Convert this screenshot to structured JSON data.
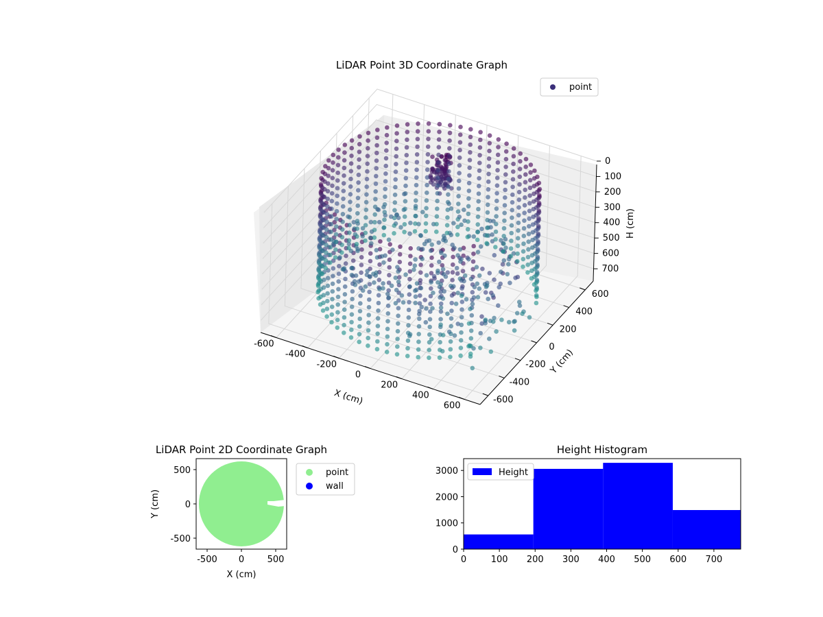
{
  "figure": {
    "background": "#ffffff"
  },
  "chart_data": [
    {
      "type": "scatter",
      "projection": "3d",
      "title": "LiDAR Point 3D Coordinate Graph",
      "xlabel": "X (cm)",
      "ylabel": "Y (cm)",
      "zlabel": "H (cm)",
      "xlim": [
        -700,
        700
      ],
      "ylim": [
        -700,
        700
      ],
      "zlim": [
        0,
        780
      ],
      "z_inverted": true,
      "xticks": [
        -600,
        -400,
        -200,
        0,
        200,
        400,
        600
      ],
      "yticks": [
        -600,
        -400,
        -200,
        0,
        200,
        400,
        600
      ],
      "zticks": [
        0,
        100,
        200,
        300,
        400,
        500,
        600,
        700
      ],
      "grid": true,
      "colormap": [
        "#440154",
        "#3b528b",
        "#21918c"
      ],
      "legend": {
        "position": "upper-right",
        "entries": [
          "point"
        ]
      },
      "series": [
        {
          "name": "point",
          "color": "#3b2f7a",
          "structure": "cylindrical wall of points, radius ~620 cm, heights 0-700 cm; cluster near (-80, 300) at 0-220 cm; floor layer near 400-500 cm; sparse scatter on the +X/-Y side"
        }
      ]
    },
    {
      "type": "scatter",
      "title": "LiDAR Point 2D Coordinate Graph",
      "xlabel": "X (cm)",
      "ylabel": "Y (cm)",
      "xlim": [
        -660,
        660
      ],
      "ylim": [
        -660,
        660
      ],
      "xticks": [
        -500,
        0,
        500
      ],
      "yticks": [
        -500,
        0,
        500
      ],
      "legend": {
        "position": "outside right",
        "entries": [
          "point",
          "wall"
        ]
      },
      "series": [
        {
          "name": "point",
          "color": "#90ee90",
          "shape": "filled disk, radius ~620 cm, gap near (420, 0)"
        },
        {
          "name": "wall",
          "color": "#0000ff"
        }
      ]
    },
    {
      "type": "bar",
      "subtype": "histogram",
      "title": "Height Histogram",
      "xlim": [
        0,
        775
      ],
      "ylim": [
        0,
        3450
      ],
      "xticks": [
        0,
        100,
        200,
        300,
        400,
        500,
        600,
        700
      ],
      "yticks": [
        0,
        1000,
        2000,
        3000
      ],
      "bins": [
        {
          "from": 0,
          "to": 195,
          "value": 560
        },
        {
          "from": 195,
          "to": 390,
          "value": 3060
        },
        {
          "from": 390,
          "to": 585,
          "value": 3290
        },
        {
          "from": 585,
          "to": 775,
          "value": 1490
        }
      ],
      "legend": {
        "position": "upper-left",
        "entries": [
          "Height"
        ]
      },
      "series": [
        {
          "name": "Height",
          "color": "#0000ff"
        }
      ]
    }
  ]
}
